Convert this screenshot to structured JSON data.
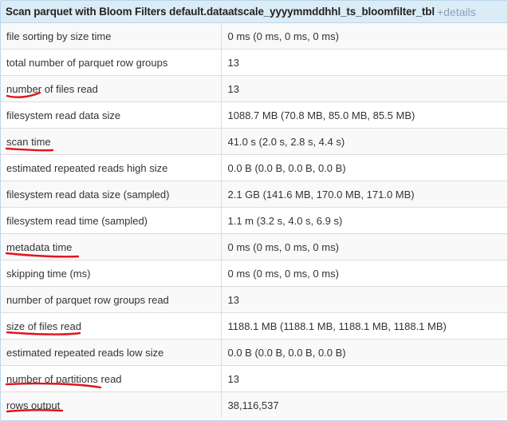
{
  "panel": {
    "title": "Scan parquet with Bloom Filters default.dataatscale_yyyymmddhhl_ts_bloomfilter_tbl",
    "details_link": "+details"
  },
  "rows": [
    {
      "label": "file sorting by size time",
      "value": "0 ms (0 ms, 0 ms, 0 ms)",
      "underlined": false
    },
    {
      "label": "total number of parquet row groups",
      "value": "13",
      "underlined": false
    },
    {
      "label": "number of files read",
      "value": "13",
      "underlined": true
    },
    {
      "label": "filesystem read data size",
      "value": "1088.7 MB (70.8 MB, 85.0 MB, 85.5 MB)",
      "underlined": false
    },
    {
      "label": "scan time",
      "value": "41.0 s (2.0 s, 2.8 s, 4.4 s)",
      "underlined": true
    },
    {
      "label": "estimated repeated reads high size",
      "value": "0.0 B (0.0 B, 0.0 B, 0.0 B)",
      "underlined": false
    },
    {
      "label": "filesystem read data size (sampled)",
      "value": "2.1 GB (141.6 MB, 170.0 MB, 171.0 MB)",
      "underlined": false
    },
    {
      "label": "filesystem read time (sampled)",
      "value": "1.1 m (3.2 s, 4.0 s, 6.9 s)",
      "underlined": false
    },
    {
      "label": "metadata time",
      "value": "0 ms (0 ms, 0 ms, 0 ms)",
      "underlined": true
    },
    {
      "label": "skipping time (ms)",
      "value": "0 ms (0 ms, 0 ms, 0 ms)",
      "underlined": false
    },
    {
      "label": "number of parquet row groups read",
      "value": "13",
      "underlined": false
    },
    {
      "label": "size of files read",
      "value": "1188.1 MB (1188.1 MB, 1188.1 MB, 1188.1 MB)",
      "underlined": true
    },
    {
      "label": "estimated repeated reads low size",
      "value": "0.0 B (0.0 B, 0.0 B, 0.0 B)",
      "underlined": false
    },
    {
      "label": "number of partitions read",
      "value": "13",
      "underlined": true
    },
    {
      "label": "rows output",
      "value": "38,116,537",
      "underlined": true
    }
  ],
  "colors": {
    "header_bg": "#dcecf7",
    "border": "#b9d6ee",
    "annotation": "#e0141e",
    "details_link": "#8aa2b8"
  }
}
